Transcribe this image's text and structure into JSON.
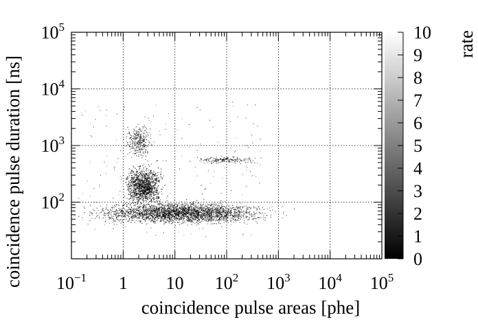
{
  "chart_data": {
    "type": "heatmap",
    "xlabel": "coincidence pulse areas [phe]",
    "ylabel": "coincidence pulse duration [ns]",
    "zlabel": "rate",
    "x_scale": "log",
    "y_scale": "log",
    "xlim": [
      0.1,
      100000
    ],
    "ylim": [
      10,
      100000
    ],
    "zlim": [
      0,
      10
    ],
    "grid": true,
    "x_ticks": [
      {
        "base": "10",
        "exp": "−1",
        "value": 0.1
      },
      {
        "base": "1",
        "exp": "",
        "value": 1
      },
      {
        "base": "10",
        "exp": "",
        "value": 10
      },
      {
        "base": "10",
        "exp": "2",
        "value": 100
      },
      {
        "base": "10",
        "exp": "3",
        "value": 1000
      },
      {
        "base": "10",
        "exp": "4",
        "value": 10000
      },
      {
        "base": "10",
        "exp": "5",
        "value": 100000
      }
    ],
    "y_ticks": [
      {
        "base": "10",
        "exp": "2",
        "value": 100
      },
      {
        "base": "10",
        "exp": "3",
        "value": 1000
      },
      {
        "base": "10",
        "exp": "4",
        "value": 10000
      },
      {
        "base": "10",
        "exp": "5",
        "value": 100000
      }
    ],
    "colorbar_ticks": [
      "0",
      "1",
      "2",
      "3",
      "4",
      "5",
      "6",
      "7",
      "8",
      "9",
      "10"
    ],
    "colormap": [
      "#000000",
      "#ffffff"
    ],
    "clusters": [
      {
        "x_range": [
          0.5,
          350
        ],
        "y_range": [
          45,
          95
        ],
        "description": "band"
      },
      {
        "x_range": [
          1.2,
          5
        ],
        "y_range": [
          100,
          400
        ],
        "description": "core"
      },
      {
        "x_range": [
          1.2,
          3.2
        ],
        "y_range": [
          700,
          2200
        ],
        "description": "upper"
      },
      {
        "x_range": [
          30,
          300
        ],
        "y_range": [
          500,
          650
        ],
        "description": "stripe"
      }
    ]
  }
}
